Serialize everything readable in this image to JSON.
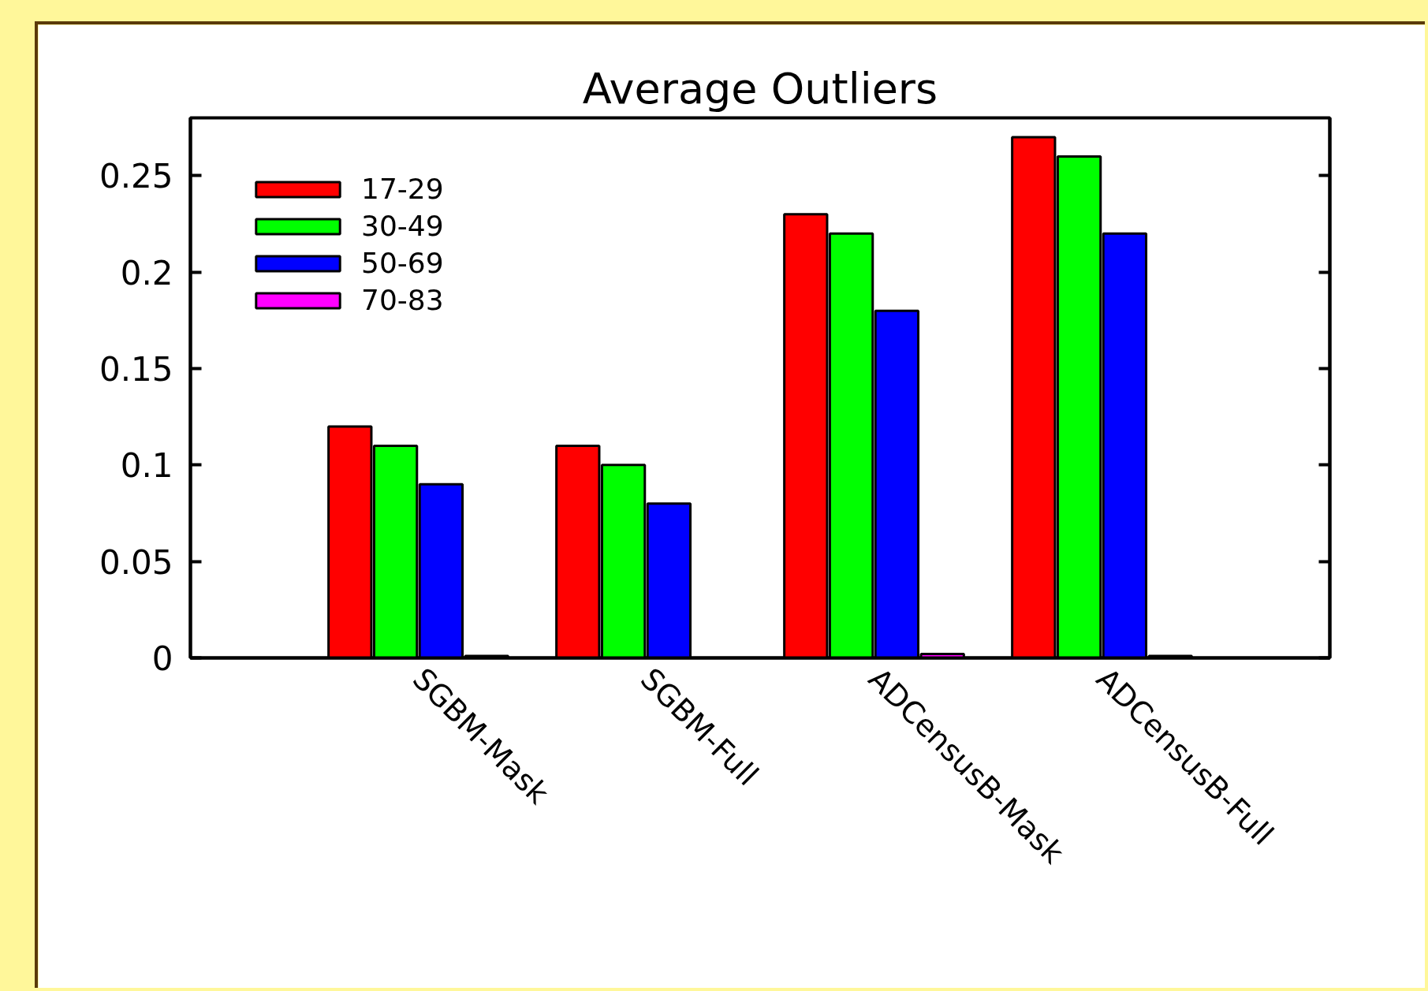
{
  "chart_data": {
    "type": "bar",
    "title": "Average Outliers",
    "categories": [
      "SGBM-Mask",
      "SGBM-Full",
      "ADCensusB-Mask",
      "ADCensusB-Full"
    ],
    "series": [
      {
        "name": "17-29",
        "color": "#ff0000",
        "values": [
          0.12,
          0.11,
          0.23,
          0.27
        ]
      },
      {
        "name": "30-49",
        "color": "#00ff00",
        "values": [
          0.11,
          0.1,
          0.22,
          0.26
        ]
      },
      {
        "name": "50-69",
        "color": "#0000ff",
        "values": [
          0.09,
          0.08,
          0.18,
          0.22
        ]
      },
      {
        "name": "70-83",
        "color": "#ff00ff",
        "values": [
          0.001,
          null,
          0.002,
          0.001
        ]
      }
    ],
    "ylim": [
      0,
      0.28
    ],
    "yticks": [
      0,
      0.05,
      0.1,
      0.15,
      0.2,
      0.25
    ],
    "grid": false,
    "legend": "top left"
  }
}
